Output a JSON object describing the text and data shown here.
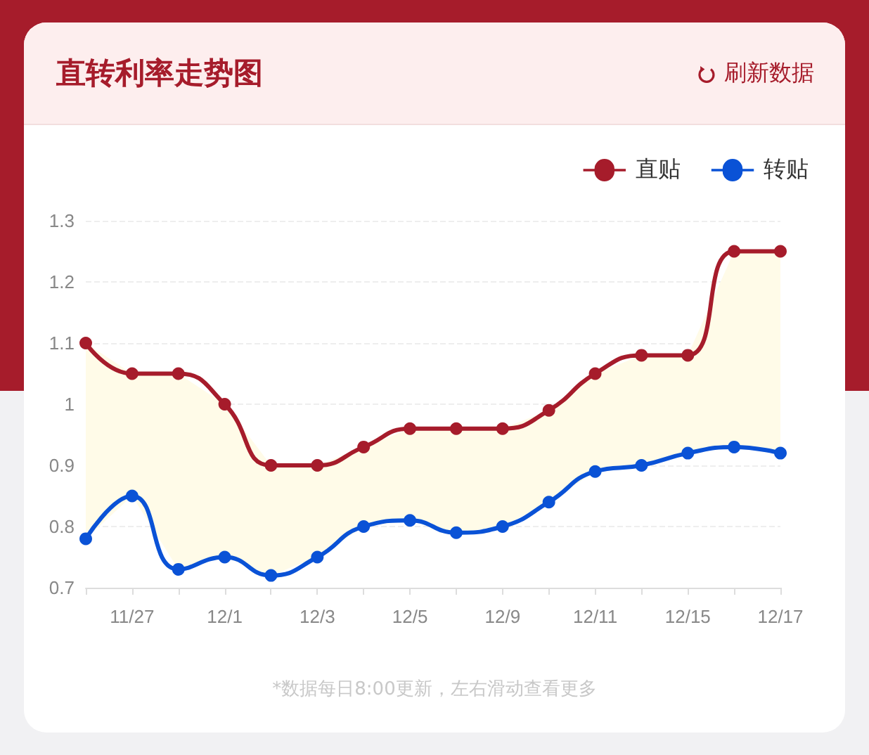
{
  "chart_data": {
    "type": "line",
    "title": "直转利率走势图",
    "categories": [
      null,
      "11/27",
      null,
      "12/1",
      null,
      "12/3",
      null,
      "12/5",
      null,
      "12/9",
      null,
      "12/11",
      null,
      "12/15",
      null,
      "12/17"
    ],
    "series": [
      {
        "name": "直贴",
        "color": "#a61c2b",
        "values": [
          1.1,
          1.05,
          1.05,
          1.0,
          0.9,
          0.9,
          0.93,
          0.96,
          0.96,
          0.96,
          0.99,
          1.05,
          1.08,
          1.08,
          1.25,
          1.25
        ],
        "lower": [
          0.78,
          0.85,
          0.73,
          0.75,
          0.72,
          0.75,
          0.8,
          0.81,
          0.79,
          0.8,
          0.84,
          0.89,
          0.9,
          0.92,
          0.93,
          0.92
        ],
        "upper": [
          1.1,
          1.05,
          1.05,
          1.0,
          0.9,
          0.9,
          0.93,
          0.96,
          0.96,
          0.96,
          0.99,
          1.05,
          1.08,
          1.08,
          1.25,
          1.25
        ]
      },
      {
        "name": "转贴",
        "color": "#0a52d6",
        "values": [
          0.78,
          0.85,
          0.73,
          0.75,
          0.72,
          0.75,
          0.8,
          0.81,
          0.79,
          0.8,
          0.84,
          0.89,
          0.9,
          0.92,
          0.93,
          0.92
        ]
      }
    ],
    "ylim": [
      0.7,
      1.3
    ],
    "yticks": [
      0.7,
      0.8,
      0.9,
      1,
      1.1,
      1.2,
      1.3
    ],
    "grid": "y",
    "legend": "top right",
    "marker": "circle",
    "line_style": "solid",
    "annotations": [
      "刷新数据",
      "*数据每日8:00更新，左右滑动查看更多"
    ]
  }
}
